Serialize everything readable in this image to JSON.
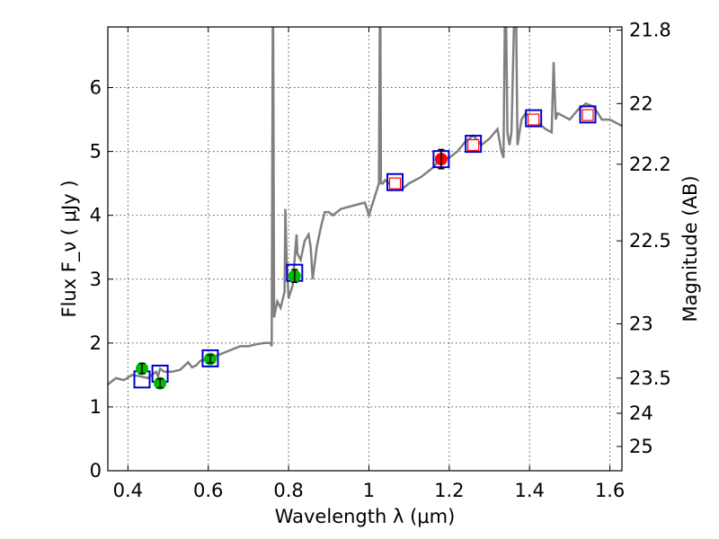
{
  "chart_data": {
    "type": "line",
    "xlabel": "Wavelength  λ (μm)",
    "ylabel": "Flux  F_ν  ( μJy )",
    "ylabel_right": "Magnitude (AB)",
    "xlim": [
      0.35,
      1.63
    ],
    "ylim": [
      0,
      6.95
    ],
    "grid": true,
    "x_ticks": [
      0.4,
      0.6,
      0.8,
      1.0,
      1.2,
      1.4,
      1.6
    ],
    "x_tick_labels": [
      "0.4",
      "0.6",
      "0.8",
      "1",
      "1.2",
      "1.4",
      "1.6"
    ],
    "y_ticks": [
      0,
      1,
      2,
      3,
      4,
      5,
      6
    ],
    "y_tick_labels": [
      "0",
      "1",
      "2",
      "3",
      "4",
      "5",
      "6"
    ],
    "right_ticks": [
      {
        "label": "21.8",
        "flux": 6.9
      },
      {
        "label": "22",
        "flux": 5.75
      },
      {
        "label": "22.2",
        "flux": 4.8
      },
      {
        "label": "22.5",
        "flux": 3.6
      },
      {
        "label": "23",
        "flux": 2.3
      },
      {
        "label": "23.5",
        "flux": 1.45
      },
      {
        "label": "24",
        "flux": 0.9
      },
      {
        "label": "25",
        "flux": 0.38
      }
    ],
    "colors": {
      "model": "#808080",
      "model_photometry": "#0000cc",
      "observed": "#00bb00",
      "observed_red": "#ff0000",
      "upper_limit": "#ff0000",
      "grid": "#555555"
    },
    "model_spectrum": {
      "x": [
        0.35,
        0.37,
        0.39,
        0.41,
        0.43,
        0.45,
        0.47,
        0.475,
        0.48,
        0.49,
        0.51,
        0.53,
        0.55,
        0.56,
        0.57,
        0.58,
        0.6,
        0.62,
        0.64,
        0.66,
        0.68,
        0.7,
        0.72,
        0.74,
        0.755,
        0.758,
        0.761,
        0.764,
        0.767,
        0.772,
        0.78,
        0.79,
        0.792,
        0.795,
        0.8,
        0.81,
        0.818,
        0.82,
        0.822,
        0.83,
        0.84,
        0.85,
        0.855,
        0.86,
        0.87,
        0.88,
        0.89,
        0.9,
        0.91,
        0.93,
        0.96,
        0.99,
        1.0,
        1.01,
        1.02,
        1.025,
        1.028,
        1.03,
        1.035,
        1.04,
        1.06,
        1.08,
        1.1,
        1.13,
        1.16,
        1.18,
        1.2,
        1.22,
        1.24,
        1.26,
        1.28,
        1.3,
        1.32,
        1.33,
        1.335,
        1.34,
        1.345,
        1.35,
        1.355,
        1.365,
        1.37,
        1.375,
        1.38,
        1.39,
        1.4,
        1.42,
        1.44,
        1.455,
        1.46,
        1.465,
        1.47,
        1.5,
        1.52,
        1.54,
        1.56,
        1.58,
        1.6,
        1.63
      ],
      "y": [
        1.35,
        1.45,
        1.42,
        1.5,
        1.48,
        1.45,
        1.55,
        1.48,
        1.6,
        1.55,
        1.55,
        1.58,
        1.7,
        1.62,
        1.65,
        1.72,
        1.75,
        1.8,
        1.85,
        1.9,
        1.95,
        1.95,
        1.98,
        2.0,
        2.0,
        1.95,
        8.0,
        2.4,
        2.5,
        2.65,
        2.55,
        2.8,
        4.1,
        3.3,
        2.7,
        2.9,
        3.55,
        3.7,
        3.4,
        3.3,
        3.6,
        3.7,
        3.5,
        3.0,
        3.5,
        3.8,
        4.05,
        4.05,
        4.0,
        4.1,
        4.15,
        4.2,
        4.0,
        4.2,
        4.4,
        4.5,
        8.0,
        4.5,
        4.5,
        4.55,
        4.45,
        4.4,
        4.5,
        4.6,
        4.75,
        4.9,
        4.9,
        5.0,
        5.15,
        5.25,
        5.1,
        5.2,
        5.35,
        5.0,
        4.9,
        8.0,
        5.3,
        5.1,
        5.3,
        8.0,
        5.1,
        5.3,
        5.5,
        5.6,
        5.55,
        5.45,
        5.35,
        5.3,
        6.4,
        5.5,
        5.6,
        5.5,
        5.65,
        5.75,
        5.7,
        5.5,
        5.5,
        5.4
      ]
    },
    "model_photometry": {
      "x": [
        0.435,
        0.48,
        0.605,
        0.815,
        1.065,
        1.18,
        1.26,
        1.41,
        1.545
      ],
      "y": [
        1.43,
        1.52,
        1.76,
        3.1,
        4.52,
        4.88,
        5.12,
        5.52,
        5.58
      ]
    },
    "observed_points": {
      "x": [
        0.435,
        0.48,
        0.605,
        0.815,
        1.18
      ],
      "y": [
        1.6,
        1.37,
        1.75,
        3.05,
        4.88
      ],
      "yerr": [
        0.08,
        0.07,
        0.06,
        0.1,
        0.15
      ],
      "colors": [
        "#00bb00",
        "#00bb00",
        "#00bb00",
        "#00bb00",
        "#ff0000"
      ]
    },
    "upper_limits": {
      "x": [
        1.065,
        1.26,
        1.41,
        1.545
      ],
      "y": [
        4.5,
        5.1,
        5.5,
        5.57
      ]
    }
  }
}
